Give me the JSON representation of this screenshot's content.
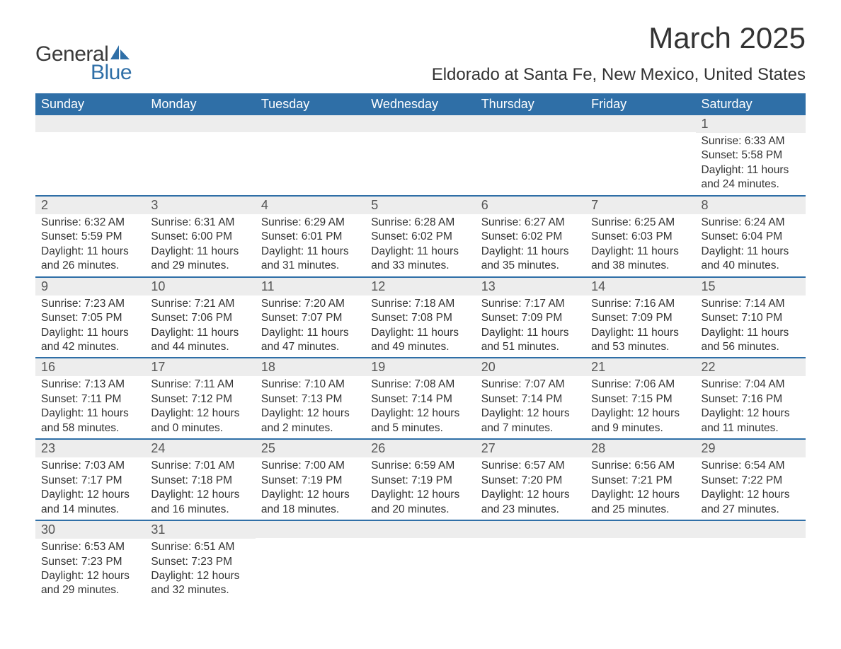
{
  "brand": {
    "part1": "General",
    "part2": "Blue",
    "icon_color": "#2f6fa7"
  },
  "title": "March 2025",
  "location": "Eldorado at Santa Fe, New Mexico, United States",
  "colors": {
    "header_bg": "#2f6fa7",
    "header_text": "#ffffff",
    "daynum_bg": "#ededed",
    "text": "#333333",
    "row_border": "#2f6fa7"
  },
  "weekdays": [
    "Sunday",
    "Monday",
    "Tuesday",
    "Wednesday",
    "Thursday",
    "Friday",
    "Saturday"
  ],
  "weeks": [
    [
      null,
      null,
      null,
      null,
      null,
      null,
      {
        "n": "1",
        "sr": "6:33 AM",
        "ss": "5:58 PM",
        "dh": "11",
        "dm": "24"
      }
    ],
    [
      {
        "n": "2",
        "sr": "6:32 AM",
        "ss": "5:59 PM",
        "dh": "11",
        "dm": "26"
      },
      {
        "n": "3",
        "sr": "6:31 AM",
        "ss": "6:00 PM",
        "dh": "11",
        "dm": "29"
      },
      {
        "n": "4",
        "sr": "6:29 AM",
        "ss": "6:01 PM",
        "dh": "11",
        "dm": "31"
      },
      {
        "n": "5",
        "sr": "6:28 AM",
        "ss": "6:02 PM",
        "dh": "11",
        "dm": "33"
      },
      {
        "n": "6",
        "sr": "6:27 AM",
        "ss": "6:02 PM",
        "dh": "11",
        "dm": "35"
      },
      {
        "n": "7",
        "sr": "6:25 AM",
        "ss": "6:03 PM",
        "dh": "11",
        "dm": "38"
      },
      {
        "n": "8",
        "sr": "6:24 AM",
        "ss": "6:04 PM",
        "dh": "11",
        "dm": "40"
      }
    ],
    [
      {
        "n": "9",
        "sr": "7:23 AM",
        "ss": "7:05 PM",
        "dh": "11",
        "dm": "42"
      },
      {
        "n": "10",
        "sr": "7:21 AM",
        "ss": "7:06 PM",
        "dh": "11",
        "dm": "44"
      },
      {
        "n": "11",
        "sr": "7:20 AM",
        "ss": "7:07 PM",
        "dh": "11",
        "dm": "47"
      },
      {
        "n": "12",
        "sr": "7:18 AM",
        "ss": "7:08 PM",
        "dh": "11",
        "dm": "49"
      },
      {
        "n": "13",
        "sr": "7:17 AM",
        "ss": "7:09 PM",
        "dh": "11",
        "dm": "51"
      },
      {
        "n": "14",
        "sr": "7:16 AM",
        "ss": "7:09 PM",
        "dh": "11",
        "dm": "53"
      },
      {
        "n": "15",
        "sr": "7:14 AM",
        "ss": "7:10 PM",
        "dh": "11",
        "dm": "56"
      }
    ],
    [
      {
        "n": "16",
        "sr": "7:13 AM",
        "ss": "7:11 PM",
        "dh": "11",
        "dm": "58"
      },
      {
        "n": "17",
        "sr": "7:11 AM",
        "ss": "7:12 PM",
        "dh": "12",
        "dm": "0"
      },
      {
        "n": "18",
        "sr": "7:10 AM",
        "ss": "7:13 PM",
        "dh": "12",
        "dm": "2"
      },
      {
        "n": "19",
        "sr": "7:08 AM",
        "ss": "7:14 PM",
        "dh": "12",
        "dm": "5"
      },
      {
        "n": "20",
        "sr": "7:07 AM",
        "ss": "7:14 PM",
        "dh": "12",
        "dm": "7"
      },
      {
        "n": "21",
        "sr": "7:06 AM",
        "ss": "7:15 PM",
        "dh": "12",
        "dm": "9"
      },
      {
        "n": "22",
        "sr": "7:04 AM",
        "ss": "7:16 PM",
        "dh": "12",
        "dm": "11"
      }
    ],
    [
      {
        "n": "23",
        "sr": "7:03 AM",
        "ss": "7:17 PM",
        "dh": "12",
        "dm": "14"
      },
      {
        "n": "24",
        "sr": "7:01 AM",
        "ss": "7:18 PM",
        "dh": "12",
        "dm": "16"
      },
      {
        "n": "25",
        "sr": "7:00 AM",
        "ss": "7:19 PM",
        "dh": "12",
        "dm": "18"
      },
      {
        "n": "26",
        "sr": "6:59 AM",
        "ss": "7:19 PM",
        "dh": "12",
        "dm": "20"
      },
      {
        "n": "27",
        "sr": "6:57 AM",
        "ss": "7:20 PM",
        "dh": "12",
        "dm": "23"
      },
      {
        "n": "28",
        "sr": "6:56 AM",
        "ss": "7:21 PM",
        "dh": "12",
        "dm": "25"
      },
      {
        "n": "29",
        "sr": "6:54 AM",
        "ss": "7:22 PM",
        "dh": "12",
        "dm": "27"
      }
    ],
    [
      {
        "n": "30",
        "sr": "6:53 AM",
        "ss": "7:23 PM",
        "dh": "12",
        "dm": "29"
      },
      {
        "n": "31",
        "sr": "6:51 AM",
        "ss": "7:23 PM",
        "dh": "12",
        "dm": "32"
      },
      null,
      null,
      null,
      null,
      null
    ]
  ],
  "labels": {
    "sunrise": "Sunrise: ",
    "sunset": "Sunset: ",
    "daylight_a": "Daylight: ",
    "daylight_b": " hours and ",
    "daylight_c": " minutes."
  }
}
